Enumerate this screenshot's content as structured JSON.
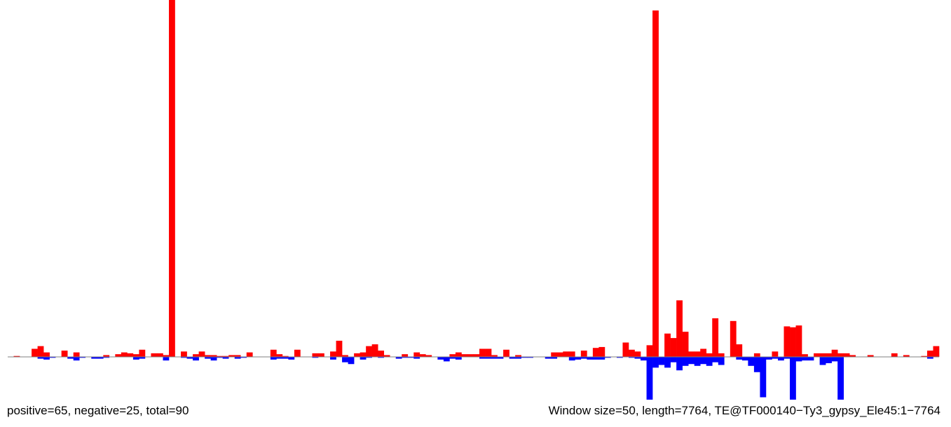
{
  "chart_data": {
    "type": "bar",
    "description_note": "",
    "x_range": [
      0,
      7764
    ],
    "window_size": 50,
    "y_scale_note": "",
    "colors": {
      "positive": "#ff0000",
      "negative": "#0000ff",
      "baseline": "#808080"
    },
    "positive_series": [
      {
        "x": 1,
        "v": 1
      },
      {
        "x": 4,
        "v": 9
      },
      {
        "x": 5,
        "v": 12
      },
      {
        "x": 6,
        "v": 5
      },
      {
        "x": 9,
        "v": 7
      },
      {
        "x": 11,
        "v": 5
      },
      {
        "x": 16,
        "v": 2
      },
      {
        "x": 18,
        "v": 3
      },
      {
        "x": 19,
        "v": 5
      },
      {
        "x": 20,
        "v": 4
      },
      {
        "x": 21,
        "v": 3
      },
      {
        "x": 22,
        "v": 8
      },
      {
        "x": 24,
        "v": 4
      },
      {
        "x": 25,
        "v": 4
      },
      {
        "x": 26,
        "v": 2
      },
      {
        "x": 27,
        "v": 400
      },
      {
        "x": 29,
        "v": 6
      },
      {
        "x": 31,
        "v": 3
      },
      {
        "x": 32,
        "v": 6
      },
      {
        "x": 33,
        "v": 2
      },
      {
        "x": 34,
        "v": 2
      },
      {
        "x": 35,
        "v": 1
      },
      {
        "x": 36,
        "v": 1
      },
      {
        "x": 37,
        "v": 2
      },
      {
        "x": 38,
        "v": 2
      },
      {
        "x": 40,
        "v": 5
      },
      {
        "x": 44,
        "v": 8
      },
      {
        "x": 45,
        "v": 3
      },
      {
        "x": 46,
        "v": 1
      },
      {
        "x": 48,
        "v": 8
      },
      {
        "x": 51,
        "v": 4
      },
      {
        "x": 52,
        "v": 4
      },
      {
        "x": 54,
        "v": 6
      },
      {
        "x": 55,
        "v": 18
      },
      {
        "x": 56,
        "v": 2
      },
      {
        "x": 58,
        "v": 4
      },
      {
        "x": 59,
        "v": 5
      },
      {
        "x": 60,
        "v": 12
      },
      {
        "x": 61,
        "v": 14
      },
      {
        "x": 62,
        "v": 7
      },
      {
        "x": 63,
        "v": 2
      },
      {
        "x": 66,
        "v": 3
      },
      {
        "x": 68,
        "v": 5
      },
      {
        "x": 69,
        "v": 3
      },
      {
        "x": 70,
        "v": 2
      },
      {
        "x": 74,
        "v": 3
      },
      {
        "x": 75,
        "v": 5
      },
      {
        "x": 76,
        "v": 3
      },
      {
        "x": 77,
        "v": 3
      },
      {
        "x": 78,
        "v": 3
      },
      {
        "x": 79,
        "v": 9
      },
      {
        "x": 80,
        "v": 9
      },
      {
        "x": 81,
        "v": 2
      },
      {
        "x": 83,
        "v": 8
      },
      {
        "x": 85,
        "v": 2
      },
      {
        "x": 91,
        "v": 5
      },
      {
        "x": 92,
        "v": 5
      },
      {
        "x": 93,
        "v": 6
      },
      {
        "x": 94,
        "v": 6
      },
      {
        "x": 96,
        "v": 7
      },
      {
        "x": 98,
        "v": 10
      },
      {
        "x": 99,
        "v": 11
      },
      {
        "x": 103,
        "v": 16
      },
      {
        "x": 104,
        "v": 8
      },
      {
        "x": 105,
        "v": 6
      },
      {
        "x": 107,
        "v": 13
      },
      {
        "x": 108,
        "v": 386
      },
      {
        "x": 110,
        "v": 26
      },
      {
        "x": 111,
        "v": 21
      },
      {
        "x": 112,
        "v": 63
      },
      {
        "x": 113,
        "v": 28
      },
      {
        "x": 114,
        "v": 6
      },
      {
        "x": 115,
        "v": 6
      },
      {
        "x": 116,
        "v": 9
      },
      {
        "x": 117,
        "v": 4
      },
      {
        "x": 118,
        "v": 43
      },
      {
        "x": 119,
        "v": 4
      },
      {
        "x": 121,
        "v": 40
      },
      {
        "x": 122,
        "v": 14
      },
      {
        "x": 125,
        "v": 4
      },
      {
        "x": 128,
        "v": 6
      },
      {
        "x": 130,
        "v": 34
      },
      {
        "x": 131,
        "v": 33
      },
      {
        "x": 132,
        "v": 35
      },
      {
        "x": 133,
        "v": 3
      },
      {
        "x": 135,
        "v": 4
      },
      {
        "x": 136,
        "v": 4
      },
      {
        "x": 137,
        "v": 4
      },
      {
        "x": 138,
        "v": 8
      },
      {
        "x": 139,
        "v": 4
      },
      {
        "x": 140,
        "v": 4
      },
      {
        "x": 141,
        "v": 2
      },
      {
        "x": 144,
        "v": 2
      },
      {
        "x": 148,
        "v": 4
      },
      {
        "x": 150,
        "v": 2
      },
      {
        "x": 153,
        "v": 1
      },
      {
        "x": 154,
        "v": 7
      },
      {
        "x": 155,
        "v": 12
      }
    ],
    "negative_series": [
      {
        "x": 5,
        "v": -2
      },
      {
        "x": 6,
        "v": -3
      },
      {
        "x": 7,
        "v": -1
      },
      {
        "x": 10,
        "v": -2
      },
      {
        "x": 11,
        "v": -4
      },
      {
        "x": 12,
        "v": -1
      },
      {
        "x": 14,
        "v": -2
      },
      {
        "x": 15,
        "v": -2
      },
      {
        "x": 16,
        "v": -1
      },
      {
        "x": 21,
        "v": -3
      },
      {
        "x": 22,
        "v": -2
      },
      {
        "x": 26,
        "v": -4
      },
      {
        "x": 29,
        "v": -1
      },
      {
        "x": 30,
        "v": -2
      },
      {
        "x": 31,
        "v": -4
      },
      {
        "x": 33,
        "v": -2
      },
      {
        "x": 34,
        "v": -4
      },
      {
        "x": 35,
        "v": -1
      },
      {
        "x": 36,
        "v": -2
      },
      {
        "x": 38,
        "v": -2
      },
      {
        "x": 39,
        "v": -1
      },
      {
        "x": 44,
        "v": -3
      },
      {
        "x": 45,
        "v": -2
      },
      {
        "x": 46,
        "v": -2
      },
      {
        "x": 47,
        "v": -3
      },
      {
        "x": 51,
        "v": -1
      },
      {
        "x": 54,
        "v": -3
      },
      {
        "x": 56,
        "v": -6
      },
      {
        "x": 57,
        "v": -8
      },
      {
        "x": 59,
        "v": -3
      },
      {
        "x": 60,
        "v": -1
      },
      {
        "x": 62,
        "v": -1
      },
      {
        "x": 65,
        "v": -2
      },
      {
        "x": 66,
        "v": -1
      },
      {
        "x": 67,
        "v": -1
      },
      {
        "x": 68,
        "v": -2
      },
      {
        "x": 72,
        "v": -3
      },
      {
        "x": 73,
        "v": -5
      },
      {
        "x": 74,
        "v": -2
      },
      {
        "x": 75,
        "v": -3
      },
      {
        "x": 79,
        "v": -2
      },
      {
        "x": 80,
        "v": -2
      },
      {
        "x": 81,
        "v": -2
      },
      {
        "x": 82,
        "v": -2
      },
      {
        "x": 84,
        "v": -2
      },
      {
        "x": 85,
        "v": -2
      },
      {
        "x": 86,
        "v": -1
      },
      {
        "x": 87,
        "v": -1
      },
      {
        "x": 90,
        "v": -2
      },
      {
        "x": 91,
        "v": -2
      },
      {
        "x": 94,
        "v": -4
      },
      {
        "x": 95,
        "v": -3
      },
      {
        "x": 96,
        "v": -2
      },
      {
        "x": 97,
        "v": -3
      },
      {
        "x": 98,
        "v": -3
      },
      {
        "x": 99,
        "v": -3
      },
      {
        "x": 100,
        "v": -1
      },
      {
        "x": 102,
        "v": -1
      },
      {
        "x": 104,
        "v": -1
      },
      {
        "x": 105,
        "v": -2
      },
      {
        "x": 106,
        "v": -4
      },
      {
        "x": 107,
        "v": -68
      },
      {
        "x": 108,
        "v": -12
      },
      {
        "x": 109,
        "v": -9
      },
      {
        "x": 110,
        "v": -12
      },
      {
        "x": 111,
        "v": -6
      },
      {
        "x": 112,
        "v": -15
      },
      {
        "x": 113,
        "v": -10
      },
      {
        "x": 114,
        "v": -8
      },
      {
        "x": 115,
        "v": -10
      },
      {
        "x": 116,
        "v": -8
      },
      {
        "x": 117,
        "v": -10
      },
      {
        "x": 118,
        "v": -6
      },
      {
        "x": 119,
        "v": -9
      },
      {
        "x": 122,
        "v": -3
      },
      {
        "x": 123,
        "v": -4
      },
      {
        "x": 124,
        "v": -10
      },
      {
        "x": 125,
        "v": -17
      },
      {
        "x": 126,
        "v": -45
      },
      {
        "x": 127,
        "v": -3
      },
      {
        "x": 128,
        "v": -2
      },
      {
        "x": 129,
        "v": -4
      },
      {
        "x": 130,
        "v": -2
      },
      {
        "x": 131,
        "v": -56
      },
      {
        "x": 132,
        "v": -5
      },
      {
        "x": 133,
        "v": -4
      },
      {
        "x": 134,
        "v": -4
      },
      {
        "x": 136,
        "v": -9
      },
      {
        "x": 137,
        "v": -7
      },
      {
        "x": 138,
        "v": -5
      },
      {
        "x": 139,
        "v": -60
      },
      {
        "x": 154,
        "v": -2
      }
    ]
  },
  "footer": {
    "stats": "positive=65, negative=25, total=90",
    "info": "Window size=50, length=7764, TE@TF000140−Ty3_gypsy_Ele45:1−7764"
  }
}
